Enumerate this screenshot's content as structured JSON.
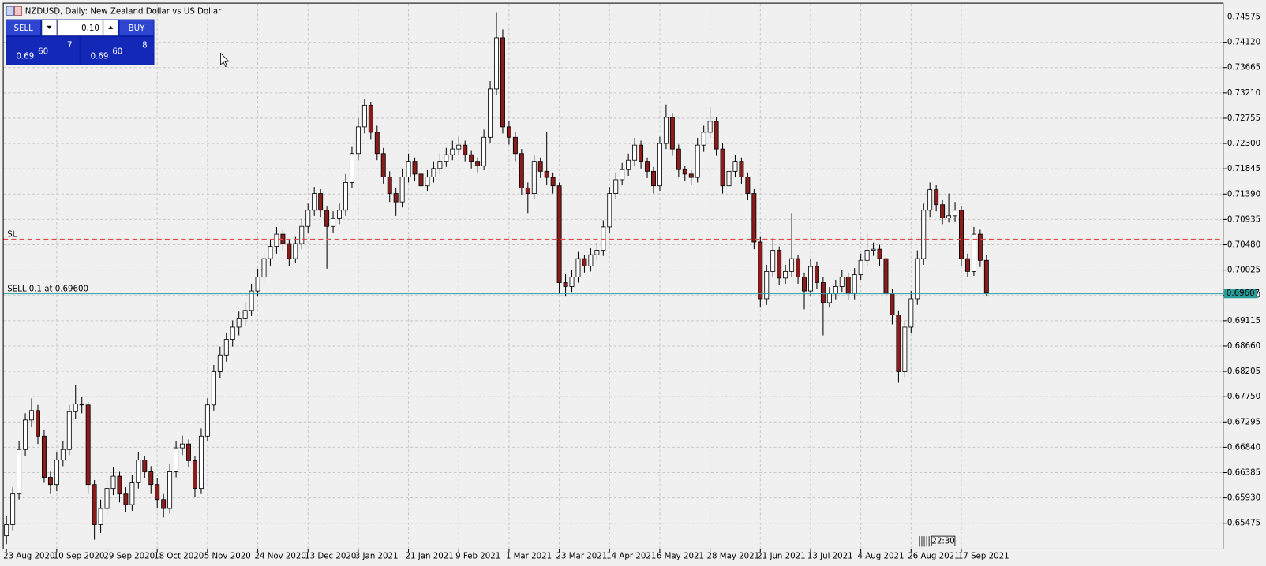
{
  "window_title": "NZDUSD, Daily:  New Zealand Dollar vs US Dollar",
  "trade_panel": {
    "sell": "SELL",
    "buy": "BUY",
    "lot": "0.10",
    "bid": {
      "big": "0.69",
      "pips": "60",
      "point": "7"
    },
    "ask": {
      "big": "0.69",
      "pips": "60",
      "point": "8"
    }
  },
  "time_marker": "22:30",
  "chart_data": {
    "type": "candlestick",
    "up_color": "#ffffff",
    "down_color": "#8b1c1c",
    "wick_color": "#000000",
    "grid": true,
    "ylim": [
      0.65011,
      0.74807
    ],
    "yticks": [
      0.74575,
      {
        "value": 0.7412,
        "label": "0.74120"
      },
      0.73665,
      {
        "value": 0.7321,
        "label": "0.73210"
      },
      0.72755,
      {
        "value": 0.723,
        "label": "0.72300"
      },
      0.71845,
      {
        "value": 0.7139,
        "label": "0.71390"
      },
      0.70935,
      {
        "value": 0.7048,
        "label": "0.70480"
      },
      0.70025,
      {
        "value": 0.6957,
        "label": "0.69570"
      },
      0.69115,
      {
        "value": 0.6866,
        "label": "0.68660"
      },
      0.68205,
      {
        "value": 0.6775,
        "label": "0.67750"
      },
      0.67295,
      {
        "value": 0.6684,
        "label": "0.66840"
      },
      0.66385,
      {
        "value": 0.6593,
        "label": "0.65930"
      },
      0.65475
    ],
    "levels": [
      {
        "label": "SL",
        "value": 0.7058,
        "color": "#e04848",
        "style": "dashed"
      },
      {
        "label": "SELL 0.1 at 0.69600",
        "value": 0.696,
        "color": "#2a9d9d",
        "style": "solid"
      }
    ],
    "current_price": 0.69607,
    "current_price_color": "#2a9d9d",
    "categories": [
      "23 Aug 2020",
      null,
      null,
      null,
      null,
      null,
      null,
      null,
      "10 Sep 2020",
      null,
      null,
      null,
      null,
      null,
      null,
      null,
      "29 Sep 2020",
      null,
      null,
      null,
      null,
      null,
      null,
      null,
      "18 Oct 2020",
      null,
      null,
      null,
      null,
      null,
      null,
      null,
      "5 Nov 2020",
      null,
      null,
      null,
      null,
      null,
      null,
      null,
      "24 Nov 2020",
      null,
      null,
      null,
      null,
      null,
      null,
      null,
      "13 Dec 2020",
      null,
      null,
      null,
      null,
      null,
      null,
      null,
      "3 Jan 2021",
      null,
      null,
      null,
      null,
      null,
      null,
      null,
      "21 Jan 2021",
      null,
      null,
      null,
      null,
      null,
      null,
      null,
      "9 Feb 2021",
      null,
      null,
      null,
      null,
      null,
      null,
      null,
      "1 Mar 2021",
      null,
      null,
      null,
      null,
      null,
      null,
      null,
      "23 Mar 2021",
      null,
      null,
      null,
      null,
      null,
      null,
      null,
      "14 Apr 2021",
      null,
      null,
      null,
      null,
      null,
      null,
      null,
      "6 May 2021",
      null,
      null,
      null,
      null,
      null,
      null,
      null,
      "28 May 2021",
      null,
      null,
      null,
      null,
      null,
      null,
      null,
      "21 Jun 2021",
      null,
      null,
      null,
      null,
      null,
      null,
      null,
      "13 Jul 2021",
      null,
      null,
      null,
      null,
      null,
      null,
      null,
      "4 Aug 2021",
      null,
      null,
      null,
      null,
      null,
      null,
      null,
      "26 Aug 2021",
      null,
      null,
      null,
      null,
      null,
      null,
      null,
      "17 Sep 2021",
      null,
      null,
      null,
      null
    ],
    "ohlc": [
      [
        0.6525,
        0.656,
        0.651,
        0.6545
      ],
      [
        0.6545,
        0.6612,
        0.6535,
        0.66
      ],
      [
        0.66,
        0.6695,
        0.659,
        0.668
      ],
      [
        0.668,
        0.6745,
        0.6668,
        0.6733
      ],
      [
        0.6733,
        0.6772,
        0.672,
        0.675
      ],
      [
        0.675,
        0.676,
        0.669,
        0.6704
      ],
      [
        0.6704,
        0.6715,
        0.662,
        0.663
      ],
      [
        0.663,
        0.664,
        0.66,
        0.6617
      ],
      [
        0.6617,
        0.6675,
        0.6605,
        0.6661
      ],
      [
        0.6661,
        0.6695,
        0.665,
        0.668
      ],
      [
        0.668,
        0.676,
        0.667,
        0.6748
      ],
      [
        0.6748,
        0.6796,
        0.6735,
        0.6762
      ],
      [
        0.6762,
        0.6775,
        0.6745,
        0.676
      ],
      [
        0.676,
        0.6765,
        0.66,
        0.6617
      ],
      [
        0.6617,
        0.6625,
        0.6518,
        0.6545
      ],
      [
        0.6545,
        0.659,
        0.653,
        0.6574
      ],
      [
        0.6574,
        0.6625,
        0.656,
        0.661
      ],
      [
        0.661,
        0.6648,
        0.6598,
        0.6632
      ],
      [
        0.6632,
        0.664,
        0.6585,
        0.66
      ],
      [
        0.66,
        0.6612,
        0.6568,
        0.6581
      ],
      [
        0.6581,
        0.6635,
        0.657,
        0.662
      ],
      [
        0.662,
        0.6675,
        0.661,
        0.6661
      ],
      [
        0.6661,
        0.6668,
        0.6628,
        0.664
      ],
      [
        0.664,
        0.665,
        0.66,
        0.6617
      ],
      [
        0.6617,
        0.6628,
        0.6575,
        0.659
      ],
      [
        0.659,
        0.66,
        0.6558,
        0.6574
      ],
      [
        0.6574,
        0.6655,
        0.6565,
        0.664
      ],
      [
        0.664,
        0.6695,
        0.663,
        0.6683
      ],
      [
        0.6683,
        0.6705,
        0.667,
        0.669
      ],
      [
        0.669,
        0.6698,
        0.6648,
        0.666
      ],
      [
        0.666,
        0.6668,
        0.6595,
        0.661
      ],
      [
        0.661,
        0.6718,
        0.66,
        0.6704
      ],
      [
        0.6704,
        0.6772,
        0.6695,
        0.676
      ],
      [
        0.676,
        0.6832,
        0.675,
        0.682
      ],
      [
        0.682,
        0.6865,
        0.6808,
        0.685
      ],
      [
        0.685,
        0.689,
        0.6838,
        0.6878
      ],
      [
        0.6878,
        0.6912,
        0.6865,
        0.69
      ],
      [
        0.69,
        0.6928,
        0.6885,
        0.6915
      ],
      [
        0.6915,
        0.6945,
        0.6902,
        0.693
      ],
      [
        0.693,
        0.6978,
        0.692,
        0.6965
      ],
      [
        0.6965,
        0.7005,
        0.6955,
        0.699
      ],
      [
        0.699,
        0.7036,
        0.6978,
        0.7023
      ],
      [
        0.7023,
        0.7058,
        0.701,
        0.7045
      ],
      [
        0.7045,
        0.708,
        0.7032,
        0.7067
      ],
      [
        0.7067,
        0.7075,
        0.7038,
        0.705
      ],
      [
        0.705,
        0.7058,
        0.701,
        0.7023
      ],
      [
        0.7023,
        0.7062,
        0.7015,
        0.705
      ],
      [
        0.705,
        0.7095,
        0.704,
        0.7081
      ],
      [
        0.7081,
        0.7122,
        0.707,
        0.711
      ],
      [
        0.711,
        0.7152,
        0.71,
        0.714
      ],
      [
        0.714,
        0.7148,
        0.7098,
        0.711
      ],
      [
        0.711,
        0.7118,
        0.7005,
        0.7081
      ],
      [
        0.7081,
        0.7108,
        0.707,
        0.7095
      ],
      [
        0.7095,
        0.7122,
        0.7085,
        0.711
      ],
      [
        0.711,
        0.7175,
        0.71,
        0.716
      ],
      [
        0.716,
        0.7225,
        0.715,
        0.7212
      ],
      [
        0.7212,
        0.7275,
        0.72,
        0.726
      ],
      [
        0.726,
        0.731,
        0.7248,
        0.7299
      ],
      [
        0.7299,
        0.7305,
        0.7238,
        0.725
      ],
      [
        0.725,
        0.7262,
        0.72,
        0.7212
      ],
      [
        0.7212,
        0.7222,
        0.7158,
        0.717
      ],
      [
        0.717,
        0.718,
        0.7125,
        0.714
      ],
      [
        0.714,
        0.715,
        0.71,
        0.7125
      ],
      [
        0.7125,
        0.7185,
        0.7115,
        0.717
      ],
      [
        0.717,
        0.7212,
        0.716,
        0.7198
      ],
      [
        0.7198,
        0.7205,
        0.7162,
        0.7175
      ],
      [
        0.7175,
        0.7185,
        0.714,
        0.7154
      ],
      [
        0.7154,
        0.7182,
        0.7145,
        0.717
      ],
      [
        0.717,
        0.7198,
        0.716,
        0.7185
      ],
      [
        0.7185,
        0.7212,
        0.7175,
        0.7198
      ],
      [
        0.7198,
        0.7222,
        0.7188,
        0.721
      ],
      [
        0.721,
        0.7235,
        0.72,
        0.722
      ],
      [
        0.722,
        0.7242,
        0.721,
        0.7227
      ],
      [
        0.7227,
        0.7235,
        0.7198,
        0.721
      ],
      [
        0.721,
        0.7218,
        0.7185,
        0.7198
      ],
      [
        0.7198,
        0.7205,
        0.7178,
        0.719
      ],
      [
        0.719,
        0.7255,
        0.7182,
        0.7241
      ],
      [
        0.7241,
        0.7342,
        0.723,
        0.7328
      ],
      [
        0.7328,
        0.7466,
        0.7318,
        0.742
      ],
      [
        0.742,
        0.7435,
        0.7248,
        0.726
      ],
      [
        0.726,
        0.727,
        0.7228,
        0.7241
      ],
      [
        0.7241,
        0.725,
        0.7198,
        0.7212
      ],
      [
        0.7212,
        0.722,
        0.7138,
        0.715
      ],
      [
        0.715,
        0.716,
        0.7105,
        0.714
      ],
      [
        0.714,
        0.721,
        0.713,
        0.7198
      ],
      [
        0.7198,
        0.7205,
        0.7168,
        0.718
      ],
      [
        0.718,
        0.725,
        0.7155,
        0.7169
      ],
      [
        0.7169,
        0.7178,
        0.714,
        0.7154
      ],
      [
        0.7154,
        0.716,
        0.696,
        0.698
      ],
      [
        0.698,
        0.6995,
        0.6955,
        0.6973
      ],
      [
        0.6973,
        0.7002,
        0.6962,
        0.699
      ],
      [
        0.699,
        0.7035,
        0.698,
        0.7023
      ],
      [
        0.7023,
        0.703,
        0.6998,
        0.701
      ],
      [
        0.701,
        0.7042,
        0.7,
        0.703
      ],
      [
        0.703,
        0.7052,
        0.702,
        0.7038
      ],
      [
        0.7038,
        0.7092,
        0.7028,
        0.708
      ],
      [
        0.708,
        0.7152,
        0.707,
        0.714
      ],
      [
        0.714,
        0.7178,
        0.713,
        0.7165
      ],
      [
        0.7165,
        0.7195,
        0.7155,
        0.7183
      ],
      [
        0.7183,
        0.7212,
        0.7172,
        0.72
      ],
      [
        0.72,
        0.724,
        0.719,
        0.7227
      ],
      [
        0.7227,
        0.7235,
        0.7185,
        0.7198
      ],
      [
        0.7198,
        0.7205,
        0.7168,
        0.718
      ],
      [
        0.718,
        0.7188,
        0.714,
        0.7154
      ],
      [
        0.7154,
        0.7242,
        0.7145,
        0.723
      ],
      [
        0.723,
        0.73,
        0.722,
        0.7277
      ],
      [
        0.7277,
        0.7285,
        0.7208,
        0.722
      ],
      [
        0.722,
        0.7228,
        0.717,
        0.7183
      ],
      [
        0.7183,
        0.719,
        0.7162,
        0.7175
      ],
      [
        0.7175,
        0.7182,
        0.7155,
        0.7169
      ],
      [
        0.7169,
        0.724,
        0.716,
        0.7227
      ],
      [
        0.7227,
        0.7262,
        0.7215,
        0.725
      ],
      [
        0.725,
        0.7295,
        0.724,
        0.727
      ],
      [
        0.727,
        0.7278,
        0.7208,
        0.722
      ],
      [
        0.722,
        0.723,
        0.714,
        0.7154
      ],
      [
        0.7154,
        0.7192,
        0.7145,
        0.718
      ],
      [
        0.718,
        0.721,
        0.717,
        0.7198
      ],
      [
        0.7198,
        0.7205,
        0.7158,
        0.717
      ],
      [
        0.717,
        0.7178,
        0.7128,
        0.714
      ],
      [
        0.714,
        0.7148,
        0.704,
        0.7053
      ],
      [
        0.7053,
        0.7062,
        0.6935,
        0.6951
      ],
      [
        0.6951,
        0.7012,
        0.694,
        0.7
      ],
      [
        0.7,
        0.706,
        0.699,
        0.7038
      ],
      [
        0.7038,
        0.7045,
        0.6975,
        0.6988
      ],
      [
        0.6988,
        0.7012,
        0.6978,
        0.7
      ],
      [
        0.7,
        0.7105,
        0.699,
        0.7023
      ],
      [
        0.7023,
        0.703,
        0.6978,
        0.699
      ],
      [
        0.699,
        0.6998,
        0.6932,
        0.6965
      ],
      [
        0.6965,
        0.7022,
        0.6955,
        0.7009
      ],
      [
        0.7009,
        0.7018,
        0.6968,
        0.698
      ],
      [
        0.698,
        0.699,
        0.6885,
        0.6944
      ],
      [
        0.6944,
        0.6972,
        0.6935,
        0.696
      ],
      [
        0.696,
        0.6985,
        0.695,
        0.6973
      ],
      [
        0.6973,
        0.7002,
        0.6962,
        0.699
      ],
      [
        0.699,
        0.6998,
        0.6948,
        0.696
      ],
      [
        0.696,
        0.7006,
        0.695,
        0.6994
      ],
      [
        0.6994,
        0.7032,
        0.6985,
        0.702
      ],
      [
        0.702,
        0.7068,
        0.701,
        0.7038
      ],
      [
        0.7038,
        0.7052,
        0.7028,
        0.704
      ],
      [
        0.704,
        0.7048,
        0.701,
        0.7023
      ],
      [
        0.7023,
        0.703,
        0.6948,
        0.696
      ],
      [
        0.696,
        0.6968,
        0.6905,
        0.6922
      ],
      [
        0.6922,
        0.693,
        0.68,
        0.682
      ],
      [
        0.682,
        0.6912,
        0.681,
        0.69
      ],
      [
        0.69,
        0.6965,
        0.689,
        0.6951
      ],
      [
        0.6951,
        0.7038,
        0.694,
        0.7023
      ],
      [
        0.7023,
        0.7122,
        0.7012,
        0.711
      ],
      [
        0.711,
        0.716,
        0.7098,
        0.7147
      ],
      [
        0.7147,
        0.7155,
        0.7108,
        0.712
      ],
      [
        0.712,
        0.7128,
        0.7085,
        0.7096
      ],
      [
        0.7096,
        0.714,
        0.7088,
        0.71
      ],
      [
        0.71,
        0.7125,
        0.709,
        0.711
      ],
      [
        0.711,
        0.7118,
        0.701,
        0.7023
      ],
      [
        0.7023,
        0.7032,
        0.699,
        0.7
      ],
      [
        0.7,
        0.708,
        0.6992,
        0.7067
      ],
      [
        0.7067,
        0.7075,
        0.7008,
        0.702
      ],
      [
        0.702,
        0.703,
        0.6955,
        0.6961
      ]
    ]
  }
}
